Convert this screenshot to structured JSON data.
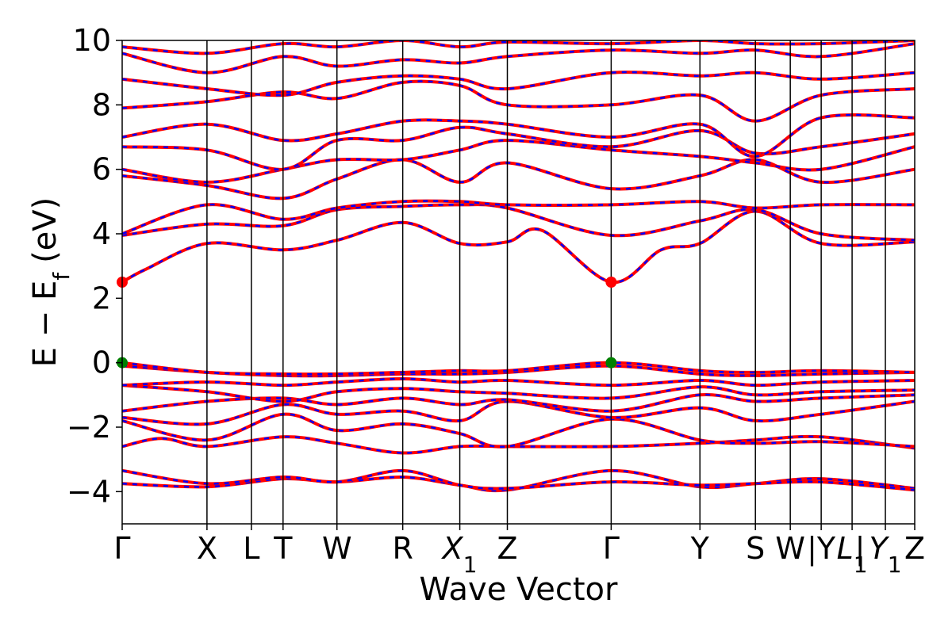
{
  "chart_data": {
    "type": "line",
    "xlabel": "Wave Vector",
    "ylabel": "E − E_f (eV)",
    "ylabel_main": "E − E",
    "ylabel_sub": "f",
    "ylabel_unit": "(eV)",
    "ylim": [
      -5,
      10
    ],
    "yticks": [
      -4,
      -2,
      0,
      2,
      4,
      6,
      8,
      10
    ],
    "ytick_labels": [
      "−4",
      "−2",
      "0",
      "2",
      "4",
      "6",
      "8",
      "10"
    ],
    "xlim": [
      0,
      1
    ],
    "grid": false,
    "legend": "none",
    "kpoints": [
      {
        "label": "Γ",
        "x": 0.0
      },
      {
        "label": "X",
        "x": 0.107
      },
      {
        "label": "L",
        "x": 0.163
      },
      {
        "label": "T",
        "x": 0.203
      },
      {
        "label": "W",
        "x": 0.271
      },
      {
        "label": "R",
        "x": 0.354
      },
      {
        "label": "X",
        "sub": "1",
        "x": 0.426
      },
      {
        "label": "Z",
        "x": 0.486
      },
      {
        "label": "Γ",
        "x": 0.617
      },
      {
        "label": "Y",
        "x": 0.729
      },
      {
        "label": "S",
        "x": 0.799
      },
      {
        "label": "W",
        "x": 0.843
      },
      {
        "label": "|Y",
        "x": 0.882
      },
      {
        "label": "L",
        "sub": "1",
        "x": 0.921
      },
      {
        "label": "|",
        "x": 0.931
      },
      {
        "label": "Y",
        "sub": "1",
        "x": 0.963
      },
      {
        "label": "Z",
        "x": 1.0
      }
    ],
    "series_colors": {
      "spin_up": "#ff0000",
      "spin_down": "#0000ff"
    },
    "markers": [
      {
        "name": "CBM",
        "x": 0.0,
        "y": 2.5,
        "color": "#ff0000"
      },
      {
        "name": "CBM",
        "x": 0.617,
        "y": 2.5,
        "color": "#ff0000"
      },
      {
        "name": "VBM",
        "x": 0.0,
        "y": 0.0,
        "color": "#008000"
      },
      {
        "name": "VBM",
        "x": 0.617,
        "y": 0.0,
        "color": "#008000"
      }
    ],
    "bands": [
      {
        "x": [
          0,
          0.107,
          0.203,
          0.271,
          0.354,
          0.426,
          0.486,
          0.617,
          0.729,
          0.799,
          0.882,
          1.0
        ],
        "y": [
          -3.75,
          -3.85,
          -3.6,
          -3.7,
          -3.55,
          -3.8,
          -3.95,
          -3.35,
          -3.85,
          -3.75,
          -3.6,
          -3.9
        ]
      },
      {
        "x": [
          0,
          0.107,
          0.203,
          0.271,
          0.354,
          0.426,
          0.486,
          0.617,
          0.729,
          0.799,
          0.882,
          1.0
        ],
        "y": [
          -3.35,
          -3.75,
          -3.55,
          -3.7,
          -3.35,
          -3.8,
          -3.9,
          -3.7,
          -3.8,
          -3.75,
          -3.7,
          -3.95
        ]
      },
      {
        "x": [
          0,
          0.05,
          0.107,
          0.203,
          0.271,
          0.354,
          0.426,
          0.486,
          0.617,
          0.729,
          0.799,
          0.882,
          1.0
        ],
        "y": [
          -2.6,
          -2.35,
          -2.6,
          -2.3,
          -2.5,
          -2.8,
          -2.6,
          -2.6,
          -2.6,
          -2.5,
          -2.4,
          -2.3,
          -2.65
        ]
      },
      {
        "x": [
          0,
          0.107,
          0.203,
          0.271,
          0.354,
          0.426,
          0.486,
          0.617,
          0.729,
          0.799,
          0.882,
          1.0
        ],
        "y": [
          -1.8,
          -2.4,
          -1.6,
          -2.1,
          -1.9,
          -2.2,
          -2.6,
          -1.75,
          -2.4,
          -2.5,
          -2.45,
          -2.6
        ]
      },
      {
        "x": [
          0,
          0.107,
          0.203,
          0.271,
          0.354,
          0.426,
          0.486,
          0.617,
          0.729,
          0.799,
          0.882,
          1.0
        ],
        "y": [
          -1.7,
          -1.9,
          -1.3,
          -1.6,
          -1.5,
          -1.8,
          -1.2,
          -1.7,
          -1.4,
          -1.8,
          -1.6,
          -1.2
        ]
      },
      {
        "x": [
          0,
          0.107,
          0.203,
          0.271,
          0.354,
          0.426,
          0.486,
          0.617,
          0.729,
          0.799,
          0.882,
          1.0
        ],
        "y": [
          -1.5,
          -1.2,
          -1.1,
          -1.3,
          -1.1,
          -1.3,
          -1.15,
          -1.5,
          -1.0,
          -1.2,
          -1.1,
          -1.0
        ]
      },
      {
        "x": [
          0,
          0.107,
          0.203,
          0.271,
          0.354,
          0.426,
          0.486,
          0.617,
          0.729,
          0.799,
          0.882,
          1.0
        ],
        "y": [
          -0.7,
          -0.9,
          -1.2,
          -0.9,
          -0.8,
          -0.9,
          -0.95,
          -1.1,
          -0.75,
          -1.0,
          -0.9,
          -0.85
        ]
      },
      {
        "x": [
          0,
          0.107,
          0.203,
          0.271,
          0.354,
          0.426,
          0.486,
          0.617,
          0.729,
          0.799,
          0.882,
          1.0
        ],
        "y": [
          -0.7,
          -0.6,
          -0.7,
          -0.6,
          -0.5,
          -0.6,
          -0.55,
          -0.7,
          -0.55,
          -0.7,
          -0.6,
          -0.55
        ]
      },
      {
        "x": [
          0,
          0.107,
          0.203,
          0.271,
          0.354,
          0.426,
          0.486,
          0.617,
          0.729,
          0.799,
          0.882,
          1.0
        ],
        "y": [
          -0.1,
          -0.3,
          -0.4,
          -0.4,
          -0.35,
          -0.35,
          -0.3,
          -0.1,
          -0.35,
          -0.4,
          -0.35,
          -0.3
        ]
      },
      {
        "x": [
          0,
          0.107,
          0.203,
          0.271,
          0.354,
          0.426,
          0.486,
          0.617,
          0.729,
          0.799,
          0.882,
          1.0
        ],
        "y": [
          0.0,
          -0.3,
          -0.35,
          -0.35,
          -0.3,
          -0.25,
          -0.25,
          0.0,
          -0.25,
          -0.3,
          -0.25,
          -0.3
        ]
      },
      {
        "x": [
          0,
          0.03,
          0.107,
          0.203,
          0.271,
          0.354,
          0.426,
          0.486,
          0.53,
          0.617,
          0.68,
          0.729,
          0.799,
          0.882,
          1.0
        ],
        "y": [
          2.5,
          2.9,
          3.7,
          3.5,
          3.8,
          4.35,
          3.7,
          3.75,
          4.1,
          2.5,
          3.5,
          3.7,
          4.7,
          3.7,
          3.75
        ]
      },
      {
        "x": [
          0,
          0.107,
          0.203,
          0.271,
          0.354,
          0.426,
          0.486,
          0.617,
          0.729,
          0.799,
          0.882,
          1.0
        ],
        "y": [
          3.95,
          4.3,
          4.25,
          4.75,
          4.85,
          4.9,
          4.8,
          3.95,
          4.4,
          4.75,
          4.0,
          3.8
        ]
      },
      {
        "x": [
          0,
          0.107,
          0.203,
          0.271,
          0.354,
          0.426,
          0.486,
          0.617,
          0.729,
          0.799,
          0.882,
          1.0
        ],
        "y": [
          4.0,
          4.9,
          4.45,
          4.8,
          5.0,
          5.0,
          4.9,
          4.9,
          5.0,
          4.8,
          4.9,
          4.9
        ]
      },
      {
        "x": [
          0,
          0.107,
          0.203,
          0.271,
          0.354,
          0.426,
          0.486,
          0.617,
          0.729,
          0.799,
          0.882,
          1.0
        ],
        "y": [
          5.8,
          5.5,
          5.1,
          5.7,
          6.3,
          5.6,
          6.2,
          5.4,
          5.8,
          6.3,
          5.6,
          6.0
        ]
      },
      {
        "x": [
          0,
          0.107,
          0.203,
          0.271,
          0.354,
          0.426,
          0.486,
          0.617,
          0.729,
          0.799,
          0.882,
          1.0
        ],
        "y": [
          6.0,
          5.6,
          6.0,
          6.3,
          6.3,
          6.6,
          6.9,
          6.6,
          6.4,
          6.2,
          6.0,
          6.7
        ]
      },
      {
        "x": [
          0,
          0.107,
          0.203,
          0.271,
          0.354,
          0.426,
          0.486,
          0.617,
          0.729,
          0.799,
          0.882,
          1.0
        ],
        "y": [
          6.7,
          6.6,
          6.0,
          6.9,
          6.9,
          7.3,
          7.1,
          6.7,
          7.2,
          6.5,
          6.7,
          7.1
        ]
      },
      {
        "x": [
          0,
          0.107,
          0.203,
          0.271,
          0.354,
          0.426,
          0.486,
          0.617,
          0.729,
          0.799,
          0.882,
          1.0
        ],
        "y": [
          7.0,
          7.4,
          6.9,
          7.1,
          7.5,
          7.5,
          7.4,
          7.0,
          7.4,
          6.4,
          7.6,
          7.6
        ]
      },
      {
        "x": [
          0,
          0.107,
          0.203,
          0.271,
          0.354,
          0.426,
          0.486,
          0.617,
          0.729,
          0.799,
          0.882,
          1.0
        ],
        "y": [
          7.9,
          8.1,
          8.4,
          8.2,
          8.7,
          8.6,
          8.0,
          8.0,
          8.3,
          7.5,
          8.3,
          8.5
        ]
      },
      {
        "x": [
          0,
          0.107,
          0.203,
          0.271,
          0.354,
          0.426,
          0.486,
          0.617,
          0.729,
          0.799,
          0.882,
          1.0
        ],
        "y": [
          8.8,
          8.5,
          8.3,
          8.7,
          8.9,
          8.8,
          8.5,
          9.0,
          8.9,
          9.0,
          8.8,
          9.0
        ]
      },
      {
        "x": [
          0,
          0.107,
          0.203,
          0.271,
          0.354,
          0.426,
          0.486,
          0.617,
          0.729,
          0.799,
          0.882,
          1.0
        ],
        "y": [
          9.6,
          9.0,
          9.5,
          9.2,
          9.4,
          9.3,
          9.5,
          9.7,
          9.6,
          9.7,
          9.5,
          9.9
        ]
      },
      {
        "x": [
          0,
          0.107,
          0.203,
          0.271,
          0.354,
          0.426,
          0.486,
          0.617,
          0.729,
          0.799,
          0.882,
          1.0
        ],
        "y": [
          9.8,
          9.6,
          9.9,
          9.8,
          10.0,
          9.8,
          9.95,
          9.9,
          10.0,
          9.9,
          9.9,
          10.0
        ]
      }
    ]
  }
}
